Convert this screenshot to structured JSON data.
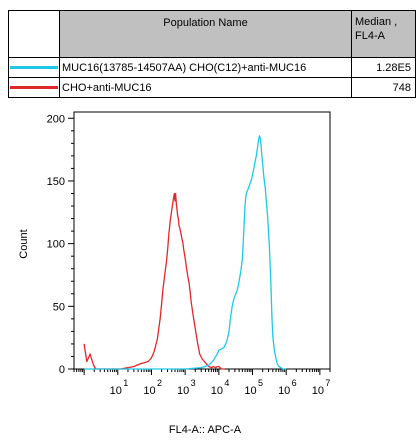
{
  "legend": {
    "header_name": "Population Name",
    "header_median_line1": "Median ,",
    "header_median_line2": "FL4-A",
    "rows": [
      {
        "label": "MUC16(13785-14507AA) CHO(C12)+anti-MUC16",
        "median": "1.28E5",
        "color": "#1ec8e6"
      },
      {
        "label": "CHO+anti-MUC16",
        "median": "748",
        "color": "#e02828"
      }
    ]
  },
  "chart_data": {
    "type": "line",
    "title": "",
    "xlabel": "FL4-A:: APC-A",
    "ylabel": "Count",
    "x_scale": "log",
    "xlim": [
      0.5,
      20000000
    ],
    "ylim": [
      0,
      205
    ],
    "yticks": [
      0,
      50,
      100,
      150,
      200
    ],
    "xticks": [
      {
        "base": "10",
        "exp": "1"
      },
      {
        "base": "10",
        "exp": "2"
      },
      {
        "base": "10",
        "exp": "3"
      },
      {
        "base": "10",
        "exp": "4"
      },
      {
        "base": "10",
        "exp": "5"
      },
      {
        "base": "10",
        "exp": "6"
      },
      {
        "base": "10",
        "exp": "7"
      }
    ],
    "series": [
      {
        "name": "CHO+anti-MUC16",
        "color": "#e02828",
        "x": [
          1.0,
          1.2,
          1.5,
          1.8,
          2.0,
          2.2,
          3,
          5,
          8,
          12,
          20,
          30,
          45,
          60,
          80,
          100,
          120,
          150,
          180,
          200,
          220,
          250,
          280,
          300,
          330,
          360,
          390,
          420,
          450,
          480,
          500,
          520,
          550,
          580,
          600,
          630,
          660,
          700,
          750,
          800,
          850,
          900,
          950,
          1000,
          1100,
          1200,
          1300,
          1400,
          1500,
          1700,
          2000,
          2300,
          2700,
          3200,
          4000,
          5000,
          6000,
          7000,
          8000,
          9000,
          10000,
          12000,
          15000
        ],
        "y": [
          20,
          6,
          12,
          5,
          2,
          0,
          0,
          0,
          0,
          0,
          1,
          2,
          4,
          5,
          6,
          9,
          14,
          24,
          40,
          52,
          64,
          76,
          86,
          95,
          108,
          118,
          125,
          131,
          136,
          140,
          134,
          140,
          131,
          126,
          122,
          120,
          114,
          112,
          108,
          104,
          101,
          96,
          92,
          88,
          80,
          74,
          69,
          62,
          54,
          44,
          32,
          22,
          12,
          8,
          5,
          2,
          1,
          2,
          1,
          2,
          2,
          0,
          0
        ]
      },
      {
        "name": "MUC16(13785-14507AA) CHO(C12)+anti-MUC16",
        "color": "#1ec8e6",
        "x": [
          1.0,
          10,
          100,
          1000,
          3000,
          5000,
          6000,
          7000,
          8000,
          9000,
          10000,
          12000,
          14000,
          16000,
          18000,
          20000,
          22000,
          25000,
          28000,
          32000,
          36000,
          40000,
          45000,
          50000,
          55000,
          60000,
          65000,
          70000,
          75000,
          80000,
          85000,
          90000,
          95000,
          100000,
          110000,
          120000,
          130000,
          140000,
          150000,
          160000,
          170000,
          180000,
          190000,
          200000,
          220000,
          240000,
          260000,
          280000,
          300000,
          320000,
          350000,
          380000,
          400000,
          450000,
          500000,
          550000,
          600000,
          700000,
          800000,
          1000000
        ],
        "y": [
          0,
          0,
          0,
          0,
          1,
          3,
          5,
          7,
          10,
          12,
          15,
          16,
          17,
          20,
          24,
          30,
          40,
          50,
          56,
          60,
          64,
          70,
          78,
          88,
          110,
          130,
          140,
          142,
          144,
          146,
          148,
          150,
          152,
          155,
          160,
          166,
          170,
          176,
          182,
          186,
          184,
          178,
          170,
          164,
          152,
          144,
          132,
          122,
          108,
          96,
          70,
          40,
          26,
          14,
          8,
          4,
          2,
          1,
          0,
          0
        ]
      }
    ]
  }
}
